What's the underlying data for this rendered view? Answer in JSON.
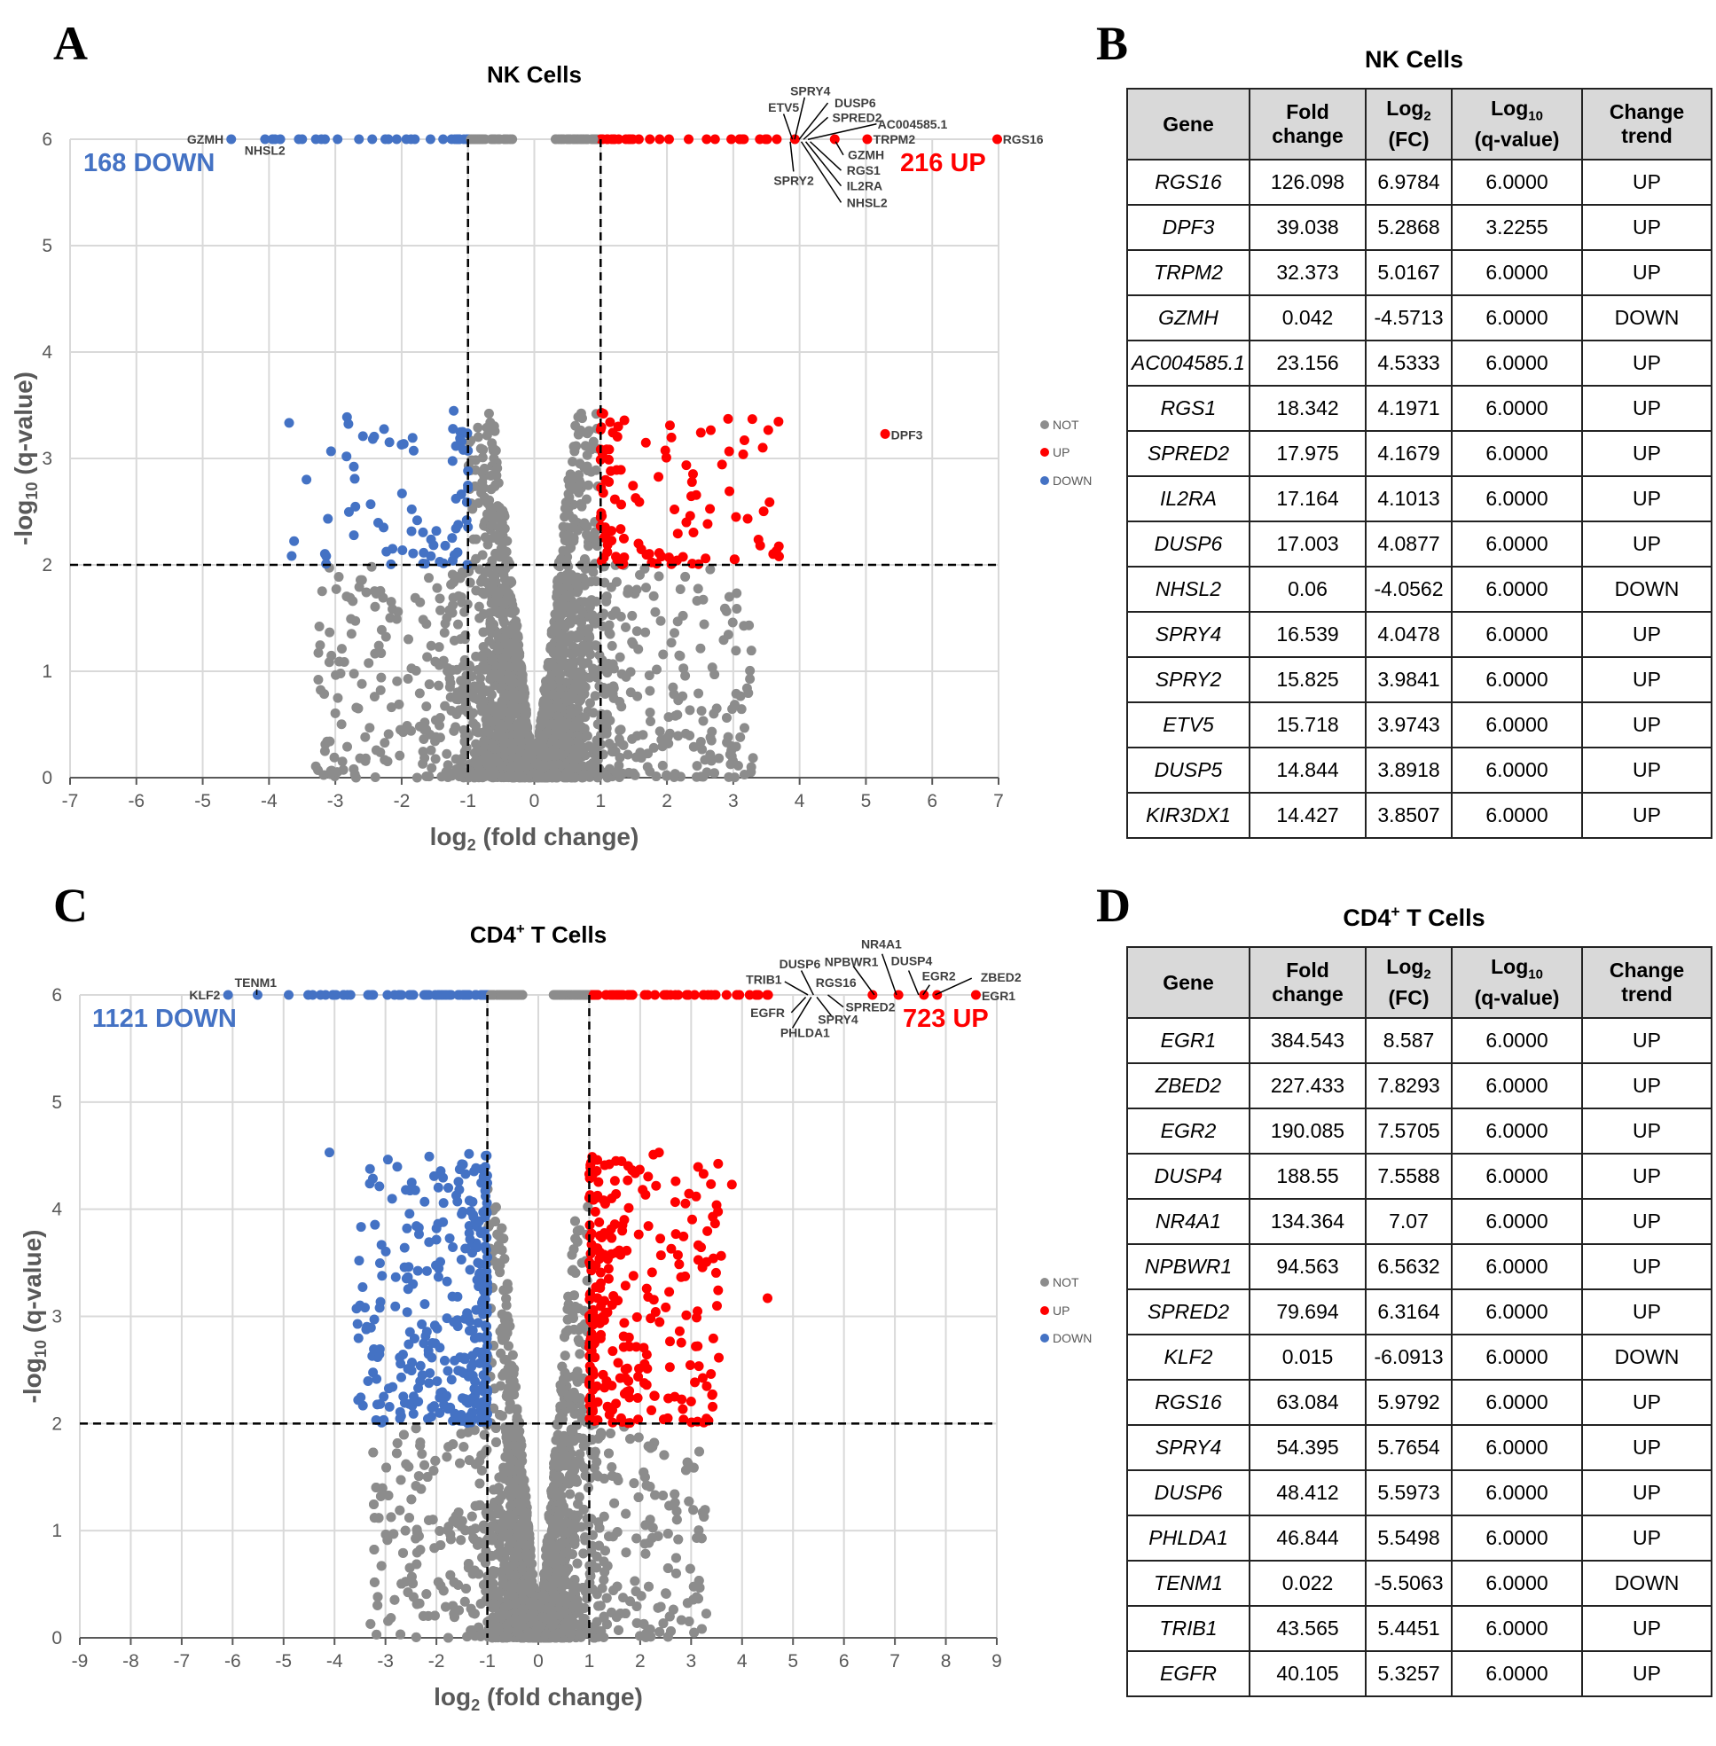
{
  "panels": [
    {
      "letter": "A",
      "chart_data": {
        "type": "scatter",
        "title": {
          "pre": "NK Cells",
          "sup": ""
        },
        "xlabel": {
          "pre": "log",
          "sub": "2",
          "post": " (fold change)"
        },
        "ylabel": {
          "pre": "-log",
          "sub": "10",
          "post": " (q-value)"
        },
        "xlim": [
          -7,
          7
        ],
        "ylim": [
          0,
          6
        ],
        "xticks": [
          -7,
          -6,
          -5,
          -4,
          -3,
          -2,
          -1,
          0,
          1,
          2,
          3,
          4,
          5,
          6,
          7
        ],
        "yticks": [
          0,
          1,
          2,
          3,
          4,
          5,
          6
        ],
        "grid": true,
        "thresholds": {
          "log2fc": [
            -1,
            1
          ],
          "neg_log10_q": 2
        },
        "down_label": "168 DOWN",
        "up_label": "216 UP",
        "legend": {
          "position": "right",
          "entries": [
            {
              "name": "NOT",
              "color": "#8c8c8c"
            },
            {
              "name": "UP",
              "color": "#ff0000"
            },
            {
              "name": "DOWN",
              "color": "#4472c4"
            }
          ]
        },
        "point_labels": [
          "GZMH",
          "NHSL2",
          "SPRY4",
          "ETV5",
          "DUSP6",
          "SPRED2",
          "AC004585.1",
          "TRPM2",
          "RGS16",
          "GZMH",
          "RGS1",
          "IL2RA",
          "NHSL2",
          "SPRY2",
          "DPF3"
        ]
      }
    },
    {
      "letter": "C",
      "chart_data": {
        "type": "scatter",
        "title": {
          "pre": "CD4",
          "sup": "+",
          "post": " T Cells"
        },
        "xlabel": {
          "pre": "log",
          "sub": "2",
          "post": " (fold change)"
        },
        "ylabel": {
          "pre": "-log",
          "sub": "10",
          "post": " (q-value)"
        },
        "xlim": [
          -9,
          9
        ],
        "ylim": [
          0,
          6
        ],
        "xticks": [
          -9,
          -8,
          -7,
          -6,
          -5,
          -4,
          -3,
          -2,
          -1,
          0,
          1,
          2,
          3,
          4,
          5,
          6,
          7,
          8,
          9
        ],
        "yticks": [
          0,
          1,
          2,
          3,
          4,
          5,
          6
        ],
        "grid": true,
        "thresholds": {
          "log2fc": [
            -1,
            1
          ],
          "neg_log10_q": 2
        },
        "down_label": "1121 DOWN",
        "up_label": "723 UP",
        "legend": {
          "position": "right",
          "entries": [
            {
              "name": "NOT",
              "color": "#8c8c8c"
            },
            {
              "name": "UP",
              "color": "#ff0000"
            },
            {
              "name": "DOWN",
              "color": "#4472c4"
            }
          ]
        },
        "point_labels": [
          "KLF2",
          "TENM1",
          "TRIB1",
          "DUSP6",
          "NPBWR1",
          "NR4A1",
          "DUSP4",
          "EGR2",
          "ZBED2",
          "EGR1",
          "RGS16",
          "SPRED2",
          "SPRY4",
          "EGFR",
          "PHLDA1"
        ]
      }
    }
  ],
  "tables": [
    {
      "letter": "B",
      "title": {
        "pre": "NK Cells",
        "sup": "",
        "post": ""
      },
      "headers": [
        {
          "l1": "Gene",
          "sub": "",
          "l2": ""
        },
        {
          "l1": "Fold",
          "sub": "",
          "l2": "change"
        },
        {
          "l1": "Log",
          "sub": "2",
          "l2": "(FC)"
        },
        {
          "l1": "Log",
          "sub": "10",
          "l2": "(q-value)"
        },
        {
          "l1": "Change",
          "sub": "",
          "l2": "trend"
        }
      ],
      "rows": [
        [
          "RGS16",
          "126.098",
          "6.9784",
          "6.0000",
          "UP"
        ],
        [
          "DPF3",
          "39.038",
          "5.2868",
          "3.2255",
          "UP"
        ],
        [
          "TRPM2",
          "32.373",
          "5.0167",
          "6.0000",
          "UP"
        ],
        [
          "GZMH",
          "0.042",
          "-4.5713",
          "6.0000",
          "DOWN"
        ],
        [
          "AC004585.1",
          "23.156",
          "4.5333",
          "6.0000",
          "UP"
        ],
        [
          "RGS1",
          "18.342",
          "4.1971",
          "6.0000",
          "UP"
        ],
        [
          "SPRED2",
          "17.975",
          "4.1679",
          "6.0000",
          "UP"
        ],
        [
          "IL2RA",
          "17.164",
          "4.1013",
          "6.0000",
          "UP"
        ],
        [
          "DUSP6",
          "17.003",
          "4.0877",
          "6.0000",
          "UP"
        ],
        [
          "NHSL2",
          "0.06",
          "-4.0562",
          "6.0000",
          "DOWN"
        ],
        [
          "SPRY4",
          "16.539",
          "4.0478",
          "6.0000",
          "UP"
        ],
        [
          "SPRY2",
          "15.825",
          "3.9841",
          "6.0000",
          "UP"
        ],
        [
          "ETV5",
          "15.718",
          "3.9743",
          "6.0000",
          "UP"
        ],
        [
          "DUSP5",
          "14.844",
          "3.8918",
          "6.0000",
          "UP"
        ],
        [
          "KIR3DX1",
          "14.427",
          "3.8507",
          "6.0000",
          "UP"
        ]
      ]
    },
    {
      "letter": "D",
      "title": {
        "pre": "CD4",
        "sup": "+",
        "post": " T Cells"
      },
      "headers": [
        {
          "l1": "Gene",
          "sub": "",
          "l2": ""
        },
        {
          "l1": "Fold",
          "sub": "",
          "l2": "change"
        },
        {
          "l1": "Log",
          "sub": "2",
          "l2": "(FC)"
        },
        {
          "l1": "Log",
          "sub": "10",
          "l2": "(q-value)"
        },
        {
          "l1": "Change",
          "sub": "",
          "l2": "trend"
        }
      ],
      "rows": [
        [
          "EGR1",
          "384.543",
          "8.587",
          "6.0000",
          "UP"
        ],
        [
          "ZBED2",
          "227.433",
          "7.8293",
          "6.0000",
          "UP"
        ],
        [
          "EGR2",
          "190.085",
          "7.5705",
          "6.0000",
          "UP"
        ],
        [
          "DUSP4",
          "188.55",
          "7.5588",
          "6.0000",
          "UP"
        ],
        [
          "NR4A1",
          "134.364",
          "7.07",
          "6.0000",
          "UP"
        ],
        [
          "NPBWR1",
          "94.563",
          "6.5632",
          "6.0000",
          "UP"
        ],
        [
          "SPRED2",
          "79.694",
          "6.3164",
          "6.0000",
          "UP"
        ],
        [
          "KLF2",
          "0.015",
          "-6.0913",
          "6.0000",
          "DOWN"
        ],
        [
          "RGS16",
          "63.084",
          "5.9792",
          "6.0000",
          "UP"
        ],
        [
          "SPRY4",
          "54.395",
          "5.7654",
          "6.0000",
          "UP"
        ],
        [
          "DUSP6",
          "48.412",
          "5.5973",
          "6.0000",
          "UP"
        ],
        [
          "PHLDA1",
          "46.844",
          "5.5498",
          "6.0000",
          "UP"
        ],
        [
          "TENM1",
          "0.022",
          "-5.5063",
          "6.0000",
          "DOWN"
        ],
        [
          "TRIB1",
          "43.565",
          "5.4451",
          "6.0000",
          "UP"
        ],
        [
          "EGFR",
          "40.105",
          "5.3257",
          "6.0000",
          "UP"
        ]
      ]
    }
  ],
  "colors": {
    "up": "#ff0000",
    "down": "#4472c4",
    "not": "#8c8c8c",
    "grid": "#d9d9d9",
    "axis_text": "#595959"
  }
}
